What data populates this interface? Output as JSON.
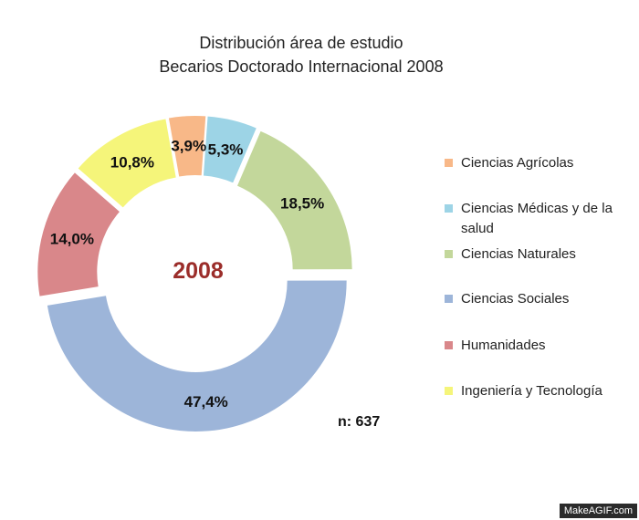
{
  "chart_data": {
    "type": "pie",
    "title": "Distribución área de estudio",
    "subtitle": "Becarios Doctorado Internacional 2008",
    "center_label": "2008",
    "n_label": "n: 637",
    "slices": [
      {
        "label": "Ciencias Agrícolas",
        "value": 3.9,
        "display": "3,9%",
        "color": "#f8b888"
      },
      {
        "label": "Ciencias Médicas y de la salud",
        "value": 5.3,
        "display": "5,3%",
        "color": "#9dd4e6"
      },
      {
        "label": "Ciencias Naturales",
        "value": 18.5,
        "display": "18,5%",
        "color": "#c3d79b"
      },
      {
        "label": "Ciencias Sociales",
        "value": 47.4,
        "display": "47,4%",
        "color": "#9db5d9"
      },
      {
        "label": "Humanidades",
        "value": 14.0,
        "display": "14,0%",
        "color": "#d9878a"
      },
      {
        "label": "Ingeniería y Tecnología",
        "value": 10.8,
        "display": "10,8%",
        "color": "#f5f57a"
      }
    ]
  },
  "watermark": "MakeAGIF.com"
}
